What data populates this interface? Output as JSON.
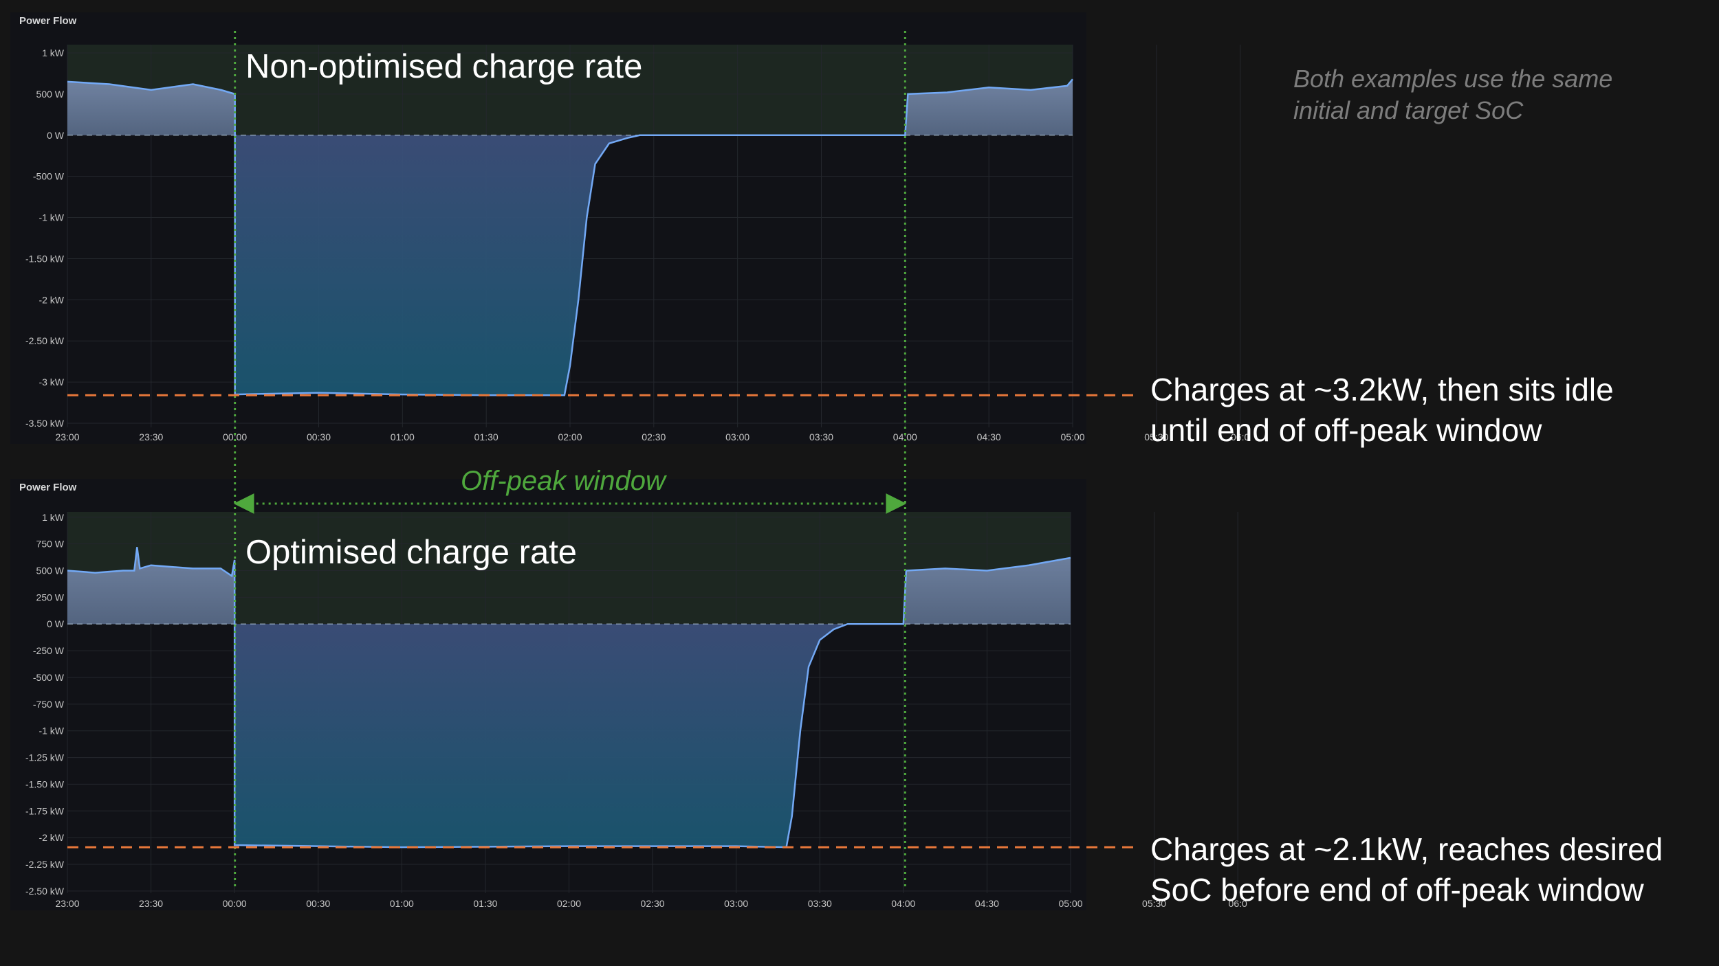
{
  "note_lines": [
    "Both examples use the same",
    "initial and target SoC"
  ],
  "window_label": "Off-peak window",
  "colors": {
    "background": "#151515",
    "panel": "#111217",
    "grid": "#24272d",
    "line": "#73a9f5",
    "off_peak_window": "#4fa83d",
    "reference": "#e8783a"
  },
  "chart_data": [
    {
      "type": "area",
      "panel_title": "Power Flow",
      "title": "Non-optimised charge rate",
      "x": [
        "23:00",
        "23:30",
        "00:00",
        "00:30",
        "01:00",
        "01:30",
        "02:00",
        "02:30",
        "03:00",
        "03:30",
        "04:00",
        "04:30",
        "05:00",
        "05:30",
        "06:0"
      ],
      "x_minutes": [
        0,
        360
      ],
      "yticks": [
        "1 kW",
        "500 W",
        "0 W",
        "-500 W",
        "-1 kW",
        "-1.50 kW",
        "-2 kW",
        "-2.50 kW",
        "-3 kW",
        "-3.50 kW"
      ],
      "ylim": [
        -3.55,
        1.1
      ],
      "series": [
        {
          "points": [
            [
              0,
              0.65
            ],
            [
              15,
              0.62
            ],
            [
              30,
              0.55
            ],
            [
              45,
              0.62
            ],
            [
              55,
              0.55
            ],
            [
              60,
              0.5
            ],
            [
              60,
              -3.15
            ],
            [
              90,
              -3.13
            ],
            [
              120,
              -3.15
            ],
            [
              150,
              -3.16
            ],
            [
              178,
              -3.16
            ],
            [
              180,
              -2.8
            ],
            [
              183,
              -2.0
            ],
            [
              186,
              -1.0
            ],
            [
              189,
              -0.35
            ],
            [
              194,
              -0.1
            ],
            [
              201,
              -0.03
            ],
            [
              205,
              0
            ],
            [
              300,
              0
            ],
            [
              301,
              0.5
            ],
            [
              315,
              0.52
            ],
            [
              330,
              0.58
            ],
            [
              345,
              0.55
            ],
            [
              358,
              0.6
            ],
            [
              360,
              0.68
            ]
          ]
        }
      ],
      "reference_line": -3.16,
      "off_peak": [
        60,
        300
      ],
      "callout": [
        "Charges at ~3.2kW, then sits idle",
        "until end of off-peak window"
      ]
    },
    {
      "type": "area",
      "panel_title": "Power Flow",
      "title": "Optimised charge rate",
      "x": [
        "23:00",
        "23:30",
        "00:00",
        "00:30",
        "01:00",
        "01:30",
        "02:00",
        "02:30",
        "03:00",
        "03:30",
        "04:00",
        "04:30",
        "05:00",
        "05:30",
        "06:0"
      ],
      "x_minutes": [
        0,
        360
      ],
      "yticks": [
        "1 kW",
        "750 W",
        "500 W",
        "250 W",
        "0 W",
        "-250 W",
        "-500 W",
        "-750 W",
        "-1 kW",
        "-1.25 kW",
        "-1.50 kW",
        "-1.75 kW",
        "-2 kW",
        "-2.25 kW",
        "-2.50 kW"
      ],
      "ylim": [
        -2.52,
        1.05
      ],
      "series": [
        {
          "points": [
            [
              0,
              0.5
            ],
            [
              10,
              0.48
            ],
            [
              20,
              0.5
            ],
            [
              24,
              0.5
            ],
            [
              25,
              0.72
            ],
            [
              26,
              0.52
            ],
            [
              30,
              0.55
            ],
            [
              45,
              0.52
            ],
            [
              55,
              0.52
            ],
            [
              59,
              0.45
            ],
            [
              60,
              0.6
            ],
            [
              60,
              -2.07
            ],
            [
              120,
              -2.09
            ],
            [
              180,
              -2.08
            ],
            [
              240,
              -2.08
            ],
            [
              258,
              -2.09
            ],
            [
              260,
              -1.8
            ],
            [
              263,
              -1.0
            ],
            [
              266,
              -0.4
            ],
            [
              270,
              -0.15
            ],
            [
              275,
              -0.05
            ],
            [
              280,
              0
            ],
            [
              300,
              0
            ],
            [
              301,
              0.5
            ],
            [
              315,
              0.52
            ],
            [
              330,
              0.5
            ],
            [
              345,
              0.55
            ],
            [
              360,
              0.62
            ]
          ]
        }
      ],
      "reference_line": -2.09,
      "off_peak": [
        60,
        300
      ],
      "callout": [
        "Charges at ~2.1kW, reaches desired",
        "SoC before end of off-peak window"
      ]
    }
  ]
}
